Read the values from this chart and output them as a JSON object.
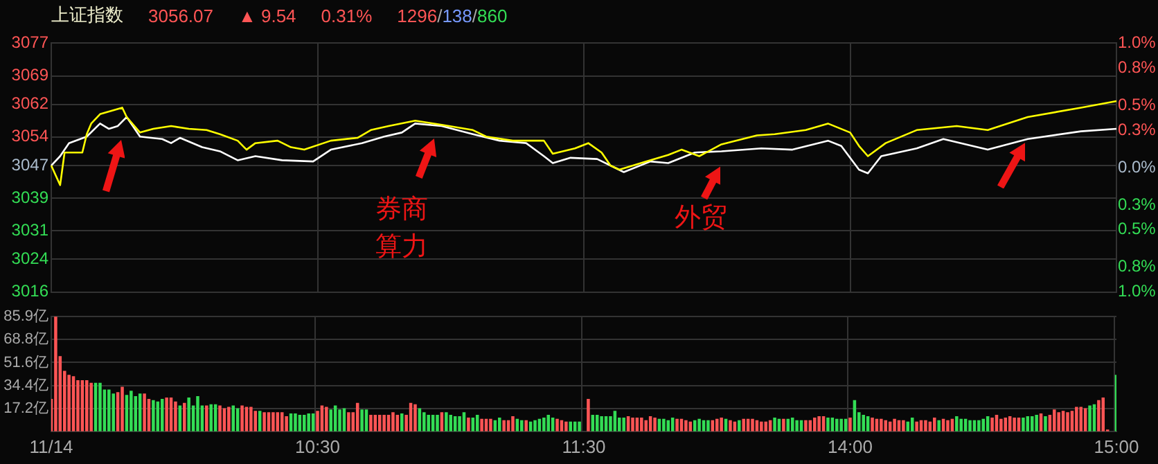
{
  "chart_data": [
    {
      "type": "line",
      "title": "上证指数",
      "annotations": [
        "3056.07",
        "▲ 9.54",
        "0.31%",
        "1296/138/860",
        "券商算力",
        "外贸"
      ],
      "categories": [
        null,
        null,
        null,
        null,
        null,
        null,
        null,
        null,
        null,
        null,
        null,
        null,
        null,
        null,
        null,
        null,
        null,
        null,
        null,
        null,
        null,
        null,
        null,
        null,
        null,
        null,
        null,
        null,
        null,
        null,
        null,
        null,
        null,
        null,
        null,
        null,
        null,
        null,
        null,
        null,
        null,
        null,
        null,
        null,
        null,
        null,
        null,
        null,
        null,
        null,
        null,
        null,
        null,
        null,
        null,
        null,
        null,
        null,
        null,
        null,
        null,
        null,
        null,
        null,
        null,
        null,
        null,
        null,
        null,
        null,
        null,
        null,
        null,
        null,
        null,
        null,
        null,
        null,
        null,
        null,
        null,
        null,
        null,
        null,
        null,
        null,
        null,
        null,
        null,
        null,
        null,
        null,
        null,
        null,
        null,
        null,
        null,
        null,
        null,
        null,
        null,
        null,
        null,
        null,
        null,
        null,
        null,
        null,
        null,
        null,
        null,
        null,
        null,
        null,
        null,
        null,
        null,
        null,
        null,
        null,
        null,
        null,
        null,
        null,
        null,
        null,
        null,
        null,
        null,
        null,
        null,
        null,
        null,
        null,
        null,
        null,
        null,
        null,
        null,
        null,
        null,
        null,
        null,
        null,
        null,
        null,
        null,
        null,
        null,
        null,
        null,
        null,
        null,
        null,
        null,
        null,
        null,
        null,
        null,
        null,
        null,
        null,
        null,
        null,
        null,
        null,
        null,
        null,
        null,
        null,
        null,
        null,
        null,
        null,
        null,
        null,
        null,
        null,
        null,
        null,
        null,
        null,
        null,
        null,
        null,
        null,
        null,
        null,
        null,
        null,
        null,
        null,
        null,
        null,
        null,
        null,
        null,
        null,
        null,
        null,
        null,
        null,
        null,
        null,
        null,
        null,
        null,
        null,
        null,
        null,
        null,
        null,
        null,
        null,
        null,
        null,
        null,
        null,
        null,
        null,
        null,
        null,
        null,
        null,
        null,
        null,
        null,
        null,
        null,
        null,
        null,
        null,
        null,
        null,
        null,
        null,
        null,
        null,
        null,
        null,
        null
      ],
      "series": [
        {
          "color": "#ffff00",
          "values": [
            3047.0,
            null,
            3042.2,
            3050.2,
            null,
            null,
            null,
            3050.2,
            3054.7,
            3057.3,
            null,
            3059.6,
            null,
            null,
            null,
            null,
            3061.2,
            3058.9,
            null,
            null,
            3055.1,
            null,
            null,
            3056.0,
            null,
            null,
            null,
            3056.7,
            null,
            null,
            null,
            3056.0,
            null,
            null,
            null,
            3055.7,
            null,
            null,
            3054.7,
            null,
            null,
            null,
            3053.1,
            null,
            3050.9,
            null,
            3052.5,
            null,
            null,
            null,
            null,
            3053.1,
            null,
            null,
            3051.5,
            null,
            null,
            3050.9,
            null,
            null,
            null,
            null,
            null,
            3053.1,
            null,
            null,
            null,
            null,
            null,
            3053.8,
            null,
            null,
            3055.7,
            null,
            null,
            null,
            3056.7,
            null,
            null,
            null,
            null,
            null,
            3058.0,
            null,
            null,
            null,
            null,
            null,
            3057.0,
            null,
            null,
            null,
            null,
            null,
            null,
            3055.7,
            null,
            null,
            3054.1,
            null,
            null,
            null,
            null,
            null,
            3053.1,
            null,
            null,
            null,
            null,
            null,
            null,
            3053.1,
            null,
            3049.9,
            null,
            null,
            null,
            null,
            3051.2,
            null,
            null,
            3052.5,
            null,
            null,
            3050.2,
            null,
            3047.0,
            null,
            3046.0,
            null,
            null,
            null,
            null,
            null,
            3048.0,
            null,
            null,
            null,
            null,
            3049.6,
            null,
            null,
            3050.9,
            null,
            null,
            null,
            3049.3,
            null,
            null,
            null,
            null,
            3052.2,
            null,
            null,
            null,
            null,
            null,
            null,
            null,
            3054.4,
            null,
            null,
            null,
            3054.7,
            null,
            null,
            null,
            null,
            null,
            null,
            3055.7,
            null,
            null,
            null,
            null,
            3057.3,
            null,
            null,
            null,
            null,
            3055.1,
            null,
            3051.8,
            null,
            3049.3,
            null,
            null,
            null,
            3052.5,
            null,
            null,
            null,
            null,
            null,
            null,
            3055.7,
            null,
            null,
            null,
            null,
            null,
            null,
            null,
            null,
            3056.7,
            null,
            null,
            null,
            null,
            null,
            null,
            3055.7,
            null,
            null,
            null,
            null,
            null,
            null,
            null,
            null,
            3058.9,
            null,
            null,
            null,
            null,
            null,
            null,
            null,
            null,
            null,
            null,
            null,
            3061.2,
            null,
            null,
            null,
            null,
            null,
            null,
            null,
            3062.8
          ]
        },
        {
          "color": "#ffffff",
          "values": [
            3047.0,
            null,
            3049.3,
            null,
            3052.5,
            null,
            null,
            null,
            3054.1,
            null,
            null,
            3057.3,
            null,
            3056.0,
            null,
            3056.7,
            null,
            3058.9,
            null,
            null,
            3054.1,
            null,
            null,
            null,
            null,
            3053.5,
            null,
            3052.5,
            null,
            3053.8,
            null,
            null,
            null,
            null,
            3051.5,
            null,
            null,
            null,
            3050.5,
            null,
            null,
            null,
            3048.3,
            null,
            null,
            null,
            3049.3,
            null,
            null,
            null,
            null,
            null,
            3048.3,
            null,
            null,
            null,
            null,
            null,
            null,
            3048.0,
            null,
            null,
            null,
            3050.9,
            null,
            null,
            null,
            null,
            null,
            null,
            3052.5,
            null,
            null,
            null,
            null,
            3054.1,
            null,
            null,
            null,
            3055.1,
            null,
            null,
            3057.3,
            null,
            null,
            null,
            null,
            null,
            3056.7,
            null,
            null,
            null,
            null,
            null,
            null,
            3054.7,
            null,
            null,
            null,
            null,
            null,
            3053.1,
            null,
            null,
            null,
            null,
            null,
            3052.5,
            null,
            null,
            null,
            3049.3,
            null,
            3047.6,
            null,
            null,
            null,
            3048.9,
            null,
            null,
            null,
            null,
            null,
            3048.6,
            null,
            null,
            null,
            null,
            null,
            3045.4,
            null,
            null,
            null,
            null,
            null,
            3048.0,
            null,
            null,
            null,
            3047.6,
            null,
            null,
            null,
            null,
            null,
            3050.2,
            null,
            null,
            null,
            null,
            null,
            3050.5,
            null,
            null,
            null,
            null,
            null,
            null,
            null,
            null,
            3051.2,
            null,
            null,
            null,
            null,
            null,
            null,
            3050.9,
            null,
            null,
            null,
            null,
            null,
            null,
            null,
            3053.1,
            null,
            null,
            3051.8,
            null,
            null,
            null,
            3046.0,
            null,
            3045.1,
            null,
            null,
            3049.3,
            null,
            null,
            null,
            null,
            null,
            null,
            null,
            3051.2,
            null,
            null,
            null,
            null,
            null,
            3053.5,
            null,
            null,
            null,
            null,
            null,
            null,
            null,
            null,
            null,
            3050.9,
            null,
            null,
            null,
            null,
            null,
            null,
            null,
            null,
            3053.5,
            null,
            null,
            null,
            null,
            null,
            null,
            null,
            null,
            null,
            null,
            null,
            3055.4,
            null,
            null,
            null,
            null,
            null,
            null,
            null,
            3056.0
          ]
        }
      ],
      "ylim": [
        3016,
        3077
      ],
      "yticks": [
        3016,
        3024,
        3031,
        3039,
        3047,
        3054,
        3062,
        3069,
        3077
      ],
      "y2lim": [
        -1,
        1
      ],
      "y2ticks": [
        {
          "value": 1,
          "label": "1.0%"
        },
        {
          "value": 0.8,
          "label": "0.8%"
        },
        {
          "value": 0.5,
          "label": "0.5%"
        },
        {
          "value": 0.3,
          "label": "0.3%"
        },
        {
          "value": 0,
          "label": "0.0%"
        },
        {
          "value": -0.3,
          "label": "0.3%"
        },
        {
          "value": -0.5,
          "label": "0.5%"
        },
        {
          "value": -0.8,
          "label": "0.8%"
        },
        {
          "value": -1,
          "label": "1.0%"
        }
      ],
      "tick_labels": "y",
      "grid": true
    },
    {
      "type": "bar",
      "categories": [
        "11/14",
        null,
        null,
        null,
        null,
        null,
        null,
        null,
        null,
        null,
        null,
        null,
        null,
        null,
        null,
        null,
        null,
        null,
        null,
        null,
        null,
        null,
        null,
        null,
        null,
        null,
        null,
        null,
        null,
        null,
        null,
        null,
        null,
        null,
        null,
        null,
        null,
        null,
        null,
        null,
        null,
        null,
        null,
        null,
        null,
        null,
        null,
        null,
        null,
        null,
        null,
        null,
        null,
        null,
        null,
        null,
        null,
        null,
        null,
        null,
        "10:30",
        null,
        null,
        null,
        null,
        null,
        null,
        null,
        null,
        null,
        null,
        null,
        null,
        null,
        null,
        null,
        null,
        null,
        null,
        null,
        null,
        null,
        null,
        null,
        null,
        null,
        null,
        null,
        null,
        null,
        null,
        null,
        null,
        null,
        null,
        null,
        null,
        null,
        null,
        null,
        null,
        null,
        null,
        null,
        null,
        null,
        null,
        null,
        null,
        null,
        null,
        null,
        null,
        null,
        null,
        null,
        null,
        null,
        null,
        null,
        "11:30",
        null,
        null,
        null,
        null,
        null,
        null,
        null,
        null,
        null,
        null,
        null,
        null,
        null,
        null,
        null,
        null,
        null,
        null,
        null,
        null,
        null,
        null,
        null,
        null,
        null,
        null,
        null,
        null,
        null,
        null,
        null,
        null,
        null,
        null,
        null,
        null,
        null,
        null,
        null,
        null,
        null,
        null,
        null,
        null,
        null,
        null,
        null,
        null,
        null,
        null,
        null,
        null,
        null,
        null,
        null,
        null,
        null,
        null,
        null,
        "14:00",
        null,
        null,
        null,
        null,
        null,
        null,
        null,
        null,
        null,
        null,
        null,
        null,
        null,
        null,
        null,
        null,
        null,
        null,
        null,
        null,
        null,
        null,
        null,
        null,
        null,
        null,
        null,
        null,
        null,
        null,
        null,
        null,
        null,
        null,
        null,
        null,
        null,
        null,
        null,
        null,
        null,
        null,
        null,
        null,
        null,
        null,
        null,
        null,
        null,
        null,
        null,
        null,
        null,
        null,
        null,
        null,
        null,
        null,
        null,
        "15:00"
      ],
      "values": [
        24,
        86,
        56,
        45,
        42,
        41,
        38,
        38,
        38,
        36,
        36,
        36,
        31,
        31,
        28,
        29,
        33,
        27,
        30,
        26,
        28,
        28,
        24,
        23,
        22,
        24,
        25,
        25,
        22,
        19,
        21,
        25,
        19,
        26,
        19,
        19,
        20,
        20,
        19,
        17,
        18,
        19,
        17,
        19,
        18,
        18,
        15,
        15,
        14,
        14,
        14,
        14,
        14,
        11,
        13,
        13,
        12,
        12,
        13,
        13,
        15,
        19,
        18,
        16,
        19,
        16,
        17,
        14,
        14,
        21,
        16,
        16,
        12,
        12,
        12,
        12,
        12,
        14,
        12,
        13,
        12,
        21,
        20,
        17,
        14,
        12,
        12,
        12,
        14,
        14,
        12,
        11,
        11,
        14,
        10,
        10,
        12,
        9,
        9,
        9,
        8,
        10,
        8,
        8,
        11,
        9,
        8,
        8,
        7,
        8,
        9,
        10,
        12,
        10,
        9,
        8,
        7,
        7,
        7,
        7,
        null,
        24,
        12,
        12,
        11,
        11,
        11,
        15,
        10,
        10,
        11,
        10,
        10,
        10,
        8,
        11,
        10,
        9,
        9,
        8,
        10,
        9,
        9,
        8,
        7,
        8,
        9,
        8,
        8,
        8,
        9,
        10,
        9,
        8,
        7,
        8,
        9,
        9,
        9,
        8,
        7,
        7,
        8,
        10,
        9,
        9,
        9,
        10,
        8,
        8,
        8,
        8,
        10,
        11,
        11,
        10,
        10,
        9,
        9,
        9,
        10,
        23,
        14,
        12,
        11,
        10,
        9,
        9,
        8,
        7,
        9,
        8,
        8,
        7,
        10,
        7,
        8,
        8,
        7,
        10,
        8,
        9,
        8,
        9,
        11,
        9,
        9,
        8,
        8,
        8,
        9,
        11,
        10,
        12,
        9,
        10,
        11,
        10,
        10,
        10,
        11,
        11,
        12,
        13,
        11,
        12,
        16,
        14,
        15,
        14,
        15,
        18,
        18,
        17,
        19,
        20,
        23,
        25,
        1,
        null,
        42
      ],
      "colors": [
        "#ff5555",
        "#ff5555",
        "#ff5555",
        "#ff5555",
        "#ff5555",
        "#ff5555",
        "#ff5555",
        "#ff5555",
        "#ff5555",
        "#ff5555",
        "#33dd55",
        "#33dd55",
        "#33dd55",
        "#33dd55",
        "#33dd55",
        "#ff5555",
        "#ff5555",
        "#33dd55",
        "#33dd55",
        "#33dd55",
        "#33dd55",
        "#ff5555",
        "#ff5555",
        "#33dd55",
        "#33dd55",
        "#33dd55",
        "#ff5555",
        "#ff5555",
        "#ff5555",
        "#33dd55",
        "#ff5555",
        "#33dd55",
        "#33dd55",
        "#33dd55",
        "#33dd55",
        "#ff5555",
        "#33dd55",
        "#33dd55",
        "#ff5555",
        "#ff5555",
        "#ff5555",
        "#33dd55",
        "#33dd55",
        "#ff5555",
        "#ff5555",
        "#ff5555",
        "#ff5555",
        "#33dd55",
        "#ff5555",
        "#ff5555",
        "#ff5555",
        "#ff5555",
        "#ff5555",
        "#ff5555",
        "#33dd55",
        "#33dd55",
        "#33dd55",
        "#33dd55",
        "#33dd55",
        "#33dd55",
        "#ff5555",
        "#ff5555",
        "#ff5555",
        "#33dd55",
        "#33dd55",
        "#33dd55",
        "#33dd55",
        "#ff5555",
        "#ff5555",
        "#ff5555",
        "#33dd55",
        "#33dd55",
        "#ff5555",
        "#ff5555",
        "#ff5555",
        "#ff5555",
        "#ff5555",
        "#ff5555",
        "#ff5555",
        "#33dd55",
        "#ff5555",
        "#ff5555",
        "#ff5555",
        "#33dd55",
        "#33dd55",
        "#33dd55",
        "#33dd55",
        "#33dd55",
        "#ff5555",
        "#33dd55",
        "#33dd55",
        "#33dd55",
        "#33dd55",
        "#33dd55",
        "#ff5555",
        "#33dd55",
        "#33dd55",
        "#ff5555",
        "#ff5555",
        "#ff5555",
        "#33dd55",
        "#33dd55",
        "#ff5555",
        "#ff5555",
        "#ff5555",
        "#33dd55",
        "#33dd55",
        "#ff5555",
        "#33dd55",
        "#33dd55",
        "#33dd55",
        "#33dd55",
        "#33dd55",
        "#33dd55",
        "#ff5555",
        "#ff5555",
        "#ff5555",
        "#33dd55",
        "#33dd55",
        "#33dd55",
        "#ff5555",
        "#ff5555",
        "#33dd55",
        "#33dd55",
        "#33dd55",
        "#33dd55",
        "#33dd55",
        "#33dd55",
        "#33dd55",
        "#33dd55",
        "#ff5555",
        "#ff5555",
        "#ff5555",
        "#ff5555",
        "#ff5555",
        "#ff5555",
        "#ff5555",
        "#33dd55",
        "#33dd55",
        "#33dd55",
        "#33dd55",
        "#ff5555",
        "#ff5555",
        "#ff5555",
        "#ff5555",
        "#33dd55",
        "#33dd55",
        "#33dd55",
        "#33dd55",
        "#ff5555",
        "#ff5555",
        "#ff5555",
        "#33dd55",
        "#ff5555",
        "#ff5555",
        "#33dd55",
        "#ff5555",
        "#ff5555",
        "#ff5555",
        "#ff5555",
        "#ff5555",
        "#ff5555",
        "#ff5555",
        "#33dd55",
        "#33dd55",
        "#ff5555",
        "#33dd55",
        "#33dd55",
        "#33dd55",
        "#33dd55",
        "#ff5555",
        "#ff5555",
        "#ff5555",
        "#ff5555",
        "#ff5555",
        "#33dd55",
        "#33dd55",
        "#33dd55",
        "#33dd55",
        "#33dd55",
        "#ff5555",
        "#33dd55",
        "#33dd55",
        "#33dd55",
        "#33dd55",
        "#ff5555",
        "#ff5555",
        "#ff5555",
        "#ff5555",
        "#ff5555",
        "#ff5555",
        "#ff5555",
        "#ff5555",
        "#33dd55",
        "#33dd55",
        "#ff5555",
        "#ff5555",
        "#ff5555",
        "#ff5555",
        "#ff5555",
        "#33dd55",
        "#ff5555",
        "#ff5555",
        "#ff5555",
        "#33dd55",
        "#33dd55",
        "#33dd55",
        "#33dd55",
        "#33dd55",
        "#33dd55",
        "#33dd55",
        "#33dd55",
        "#ff5555",
        "#ff5555",
        "#ff5555",
        "#ff5555",
        "#ff5555",
        "#ff5555",
        "#ff5555",
        "#33dd55",
        "#33dd55",
        "#33dd55",
        "#33dd55",
        "#ff5555",
        "#33dd55",
        "#ff5555",
        "#ff5555",
        "#ff5555",
        "#ff5555",
        "#ff5555",
        "#ff5555",
        "#ff5555",
        "#ff5555",
        "#ff5555",
        "#33dd55",
        "#33dd55",
        "#ff5555",
        "#ff5555",
        "#ff5555",
        "#ff5555",
        "#33dd55"
      ],
      "ylim": [
        0,
        86
      ],
      "yticks": [
        {
          "value": 17.2,
          "label": "17.2亿"
        },
        {
          "value": 34.4,
          "label": "34.4亿"
        },
        {
          "value": 51.6,
          "label": "51.6亿"
        },
        {
          "value": 68.8,
          "label": "68.8亿"
        },
        {
          "value": 85.9,
          "label": "85.9亿"
        }
      ],
      "grid": true
    }
  ]
}
